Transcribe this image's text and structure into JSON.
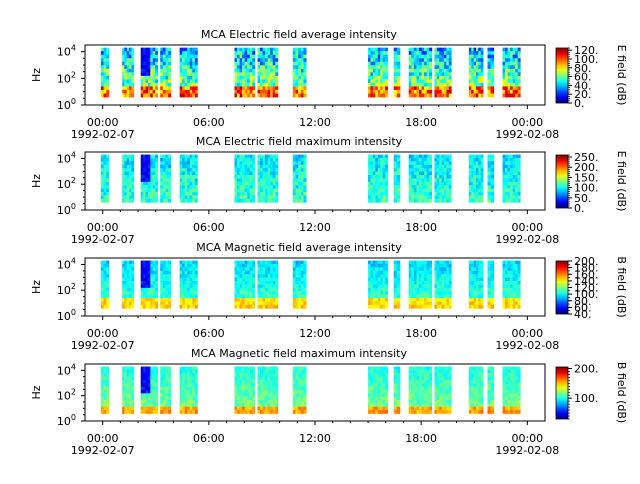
{
  "chart_data": [
    {
      "type": "heatmap",
      "title": "MCA  Electric field average intensity",
      "ylabel": "Hz",
      "ylim_log10": [
        0,
        4.5
      ],
      "y_ticks": [
        {
          "exp": 0,
          "base": "10",
          "sup": "0"
        },
        {
          "exp": 2,
          "base": "10",
          "sup": "2"
        },
        {
          "exp": 4,
          "base": "10",
          "sup": "4"
        }
      ],
      "x_range_hours": [
        -1.0,
        25.0
      ],
      "x_ticks": [
        {
          "hour": 0,
          "label": "00:00",
          "date": "1992-02-07"
        },
        {
          "hour": 6,
          "label": "06:00",
          "date": ""
        },
        {
          "hour": 12,
          "label": "12:00",
          "date": ""
        },
        {
          "hour": 18,
          "label": "18:00",
          "date": ""
        },
        {
          "hour": 24,
          "label": "00:00",
          "date": "1992-02-08"
        }
      ],
      "colorbar": {
        "label": "E field (dB)",
        "min": 0,
        "max": 125,
        "ticks": [
          {
            "value": 0,
            "label": "0."
          },
          {
            "value": 20,
            "label": "20."
          },
          {
            "value": 40,
            "label": "40."
          },
          {
            "value": 60,
            "label": "60."
          },
          {
            "value": 80,
            "label": "80."
          },
          {
            "value": 100,
            "label": "100."
          },
          {
            "value": 120,
            "label": "120."
          }
        ]
      },
      "data_intervals_hours": [
        [
          -0.1,
          0.35
        ],
        [
          1.1,
          1.75
        ],
        [
          2.15,
          3.1
        ],
        [
          3.25,
          3.85
        ],
        [
          4.35,
          5.35
        ],
        [
          7.45,
          8.6
        ],
        [
          8.75,
          9.9
        ],
        [
          10.75,
          11.5
        ],
        [
          15.0,
          16.1
        ],
        [
          16.45,
          16.8
        ],
        [
          17.3,
          18.6
        ],
        [
          18.75,
          19.7
        ],
        [
          20.7,
          21.5
        ],
        [
          21.75,
          22.1
        ],
        [
          22.6,
          23.6
        ]
      ],
      "style": "avg-e"
    },
    {
      "type": "heatmap",
      "title": "MCA  Electric field maximum intensity",
      "ylabel": "Hz",
      "ylim_log10": [
        0,
        4.5
      ],
      "y_ticks": [
        {
          "exp": 0,
          "base": "10",
          "sup": "0"
        },
        {
          "exp": 2,
          "base": "10",
          "sup": "2"
        },
        {
          "exp": 4,
          "base": "10",
          "sup": "4"
        }
      ],
      "x_range_hours": [
        -1.0,
        25.0
      ],
      "x_ticks": [
        {
          "hour": 0,
          "label": "00:00",
          "date": "1992-02-07"
        },
        {
          "hour": 6,
          "label": "06:00",
          "date": ""
        },
        {
          "hour": 12,
          "label": "12:00",
          "date": ""
        },
        {
          "hour": 18,
          "label": "18:00",
          "date": ""
        },
        {
          "hour": 24,
          "label": "00:00",
          "date": "1992-02-08"
        }
      ],
      "colorbar": {
        "label": "E field (dB)",
        "min": 0,
        "max": 260,
        "ticks": [
          {
            "value": 0,
            "label": "0."
          },
          {
            "value": 50,
            "label": "50."
          },
          {
            "value": 100,
            "label": "100."
          },
          {
            "value": 150,
            "label": "150."
          },
          {
            "value": 200,
            "label": "200."
          },
          {
            "value": 250,
            "label": "250."
          }
        ]
      },
      "data_intervals_hours": [
        [
          -0.1,
          0.35
        ],
        [
          1.1,
          1.75
        ],
        [
          2.15,
          3.1
        ],
        [
          3.25,
          3.85
        ],
        [
          4.35,
          5.35
        ],
        [
          7.45,
          8.6
        ],
        [
          8.75,
          9.9
        ],
        [
          10.75,
          11.5
        ],
        [
          15.0,
          16.1
        ],
        [
          16.45,
          16.8
        ],
        [
          17.3,
          18.6
        ],
        [
          18.75,
          19.7
        ],
        [
          20.7,
          21.5
        ],
        [
          21.75,
          22.1
        ],
        [
          22.6,
          23.6
        ]
      ],
      "style": "max-e"
    },
    {
      "type": "heatmap",
      "title": "MCA  Magnetic field average intensity",
      "ylabel": "Hz",
      "ylim_log10": [
        0,
        4.5
      ],
      "y_ticks": [
        {
          "exp": 0,
          "base": "10",
          "sup": "0"
        },
        {
          "exp": 2,
          "base": "10",
          "sup": "2"
        },
        {
          "exp": 4,
          "base": "10",
          "sup": "4"
        }
      ],
      "x_range_hours": [
        -1.0,
        25.0
      ],
      "x_ticks": [
        {
          "hour": 0,
          "label": "00:00",
          "date": "1992-02-07"
        },
        {
          "hour": 6,
          "label": "06:00",
          "date": ""
        },
        {
          "hour": 12,
          "label": "12:00",
          "date": ""
        },
        {
          "hour": 18,
          "label": "18:00",
          "date": ""
        },
        {
          "hour": 24,
          "label": "00:00",
          "date": "1992-02-08"
        }
      ],
      "colorbar": {
        "label": "B field (dB)",
        "min": 40,
        "max": 200,
        "ticks": [
          {
            "value": 40,
            "label": "40."
          },
          {
            "value": 60,
            "label": "60."
          },
          {
            "value": 80,
            "label": "80."
          },
          {
            "value": 100,
            "label": "100."
          },
          {
            "value": 120,
            "label": "120."
          },
          {
            "value": 140,
            "label": "140."
          },
          {
            "value": 160,
            "label": "160."
          },
          {
            "value": 180,
            "label": "180."
          },
          {
            "value": 200,
            "label": "200."
          }
        ]
      },
      "data_intervals_hours": [
        [
          -0.1,
          0.35
        ],
        [
          1.1,
          1.75
        ],
        [
          2.15,
          3.1
        ],
        [
          3.25,
          3.85
        ],
        [
          4.35,
          5.35
        ],
        [
          7.45,
          8.6
        ],
        [
          8.75,
          9.9
        ],
        [
          10.75,
          11.5
        ],
        [
          15.0,
          16.1
        ],
        [
          16.45,
          16.8
        ],
        [
          17.3,
          18.6
        ],
        [
          18.75,
          19.7
        ],
        [
          20.7,
          21.5
        ],
        [
          21.75,
          22.1
        ],
        [
          22.6,
          23.6
        ]
      ],
      "style": "avg-b"
    },
    {
      "type": "heatmap",
      "title": "MCA  Magnetic field maximum intensity",
      "ylabel": "Hz",
      "ylim_log10": [
        0,
        4.5
      ],
      "y_ticks": [
        {
          "exp": 0,
          "base": "10",
          "sup": "0"
        },
        {
          "exp": 2,
          "base": "10",
          "sup": "2"
        },
        {
          "exp": 4,
          "base": "10",
          "sup": "4"
        }
      ],
      "x_range_hours": [
        -1.0,
        25.0
      ],
      "x_ticks": [
        {
          "hour": 0,
          "label": "00:00",
          "date": "1992-02-07"
        },
        {
          "hour": 6,
          "label": "06:00",
          "date": ""
        },
        {
          "hour": 12,
          "label": "12:00",
          "date": ""
        },
        {
          "hour": 18,
          "label": "18:00",
          "date": ""
        },
        {
          "hour": 24,
          "label": "00:00",
          "date": "1992-02-08"
        }
      ],
      "colorbar": {
        "label": "B field (dB)",
        "min": 30,
        "max": 205,
        "ticks": [
          {
            "value": 100,
            "label": "100."
          },
          {
            "value": 200,
            "label": "200."
          }
        ]
      },
      "data_intervals_hours": [
        [
          -0.1,
          0.35
        ],
        [
          1.1,
          1.75
        ],
        [
          2.15,
          3.1
        ],
        [
          3.25,
          3.85
        ],
        [
          4.35,
          5.35
        ],
        [
          7.45,
          8.6
        ],
        [
          8.75,
          9.9
        ],
        [
          10.75,
          11.5
        ],
        [
          15.0,
          16.1
        ],
        [
          16.45,
          16.8
        ],
        [
          17.3,
          18.6
        ],
        [
          18.75,
          19.7
        ],
        [
          20.7,
          21.5
        ],
        [
          21.75,
          22.1
        ],
        [
          22.6,
          23.6
        ]
      ],
      "style": "max-b"
    }
  ]
}
